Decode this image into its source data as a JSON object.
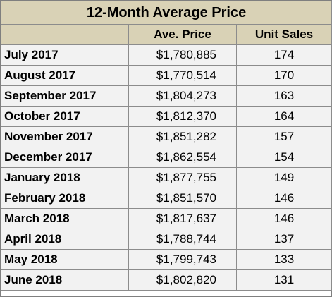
{
  "table": {
    "title": "12-Month Average Price",
    "columns": [
      "",
      "Ave. Price",
      "Unit Sales"
    ],
    "rows": [
      {
        "month": "July 2017",
        "price": "$1,780,885",
        "units": "174"
      },
      {
        "month": "August 2017",
        "price": "$1,770,514",
        "units": "170"
      },
      {
        "month": "September 2017",
        "price": "$1,804,273",
        "units": "163"
      },
      {
        "month": "October 2017",
        "price": "$1,812,370",
        "units": "164"
      },
      {
        "month": "November 2017",
        "price": "$1,851,282",
        "units": "157"
      },
      {
        "month": "December 2017",
        "price": "$1,862,554",
        "units": "154"
      },
      {
        "month": "January 2018",
        "price": "$1,877,755",
        "units": "149"
      },
      {
        "month": "February 2018",
        "price": "$1,851,570",
        "units": "146"
      },
      {
        "month": "March 2018",
        "price": "$1,817,637",
        "units": "146"
      },
      {
        "month": "April 2018",
        "price": "$1,788,744",
        "units": "137"
      },
      {
        "month": "May 2018",
        "price": "$1,799,743",
        "units": "133"
      },
      {
        "month": "June 2018",
        "price": "$1,802,820",
        "units": "131"
      }
    ]
  },
  "colors": {
    "header_background": "#d9d2b6",
    "cell_background": "#f2f2f2",
    "border": "#8c8c8c"
  }
}
